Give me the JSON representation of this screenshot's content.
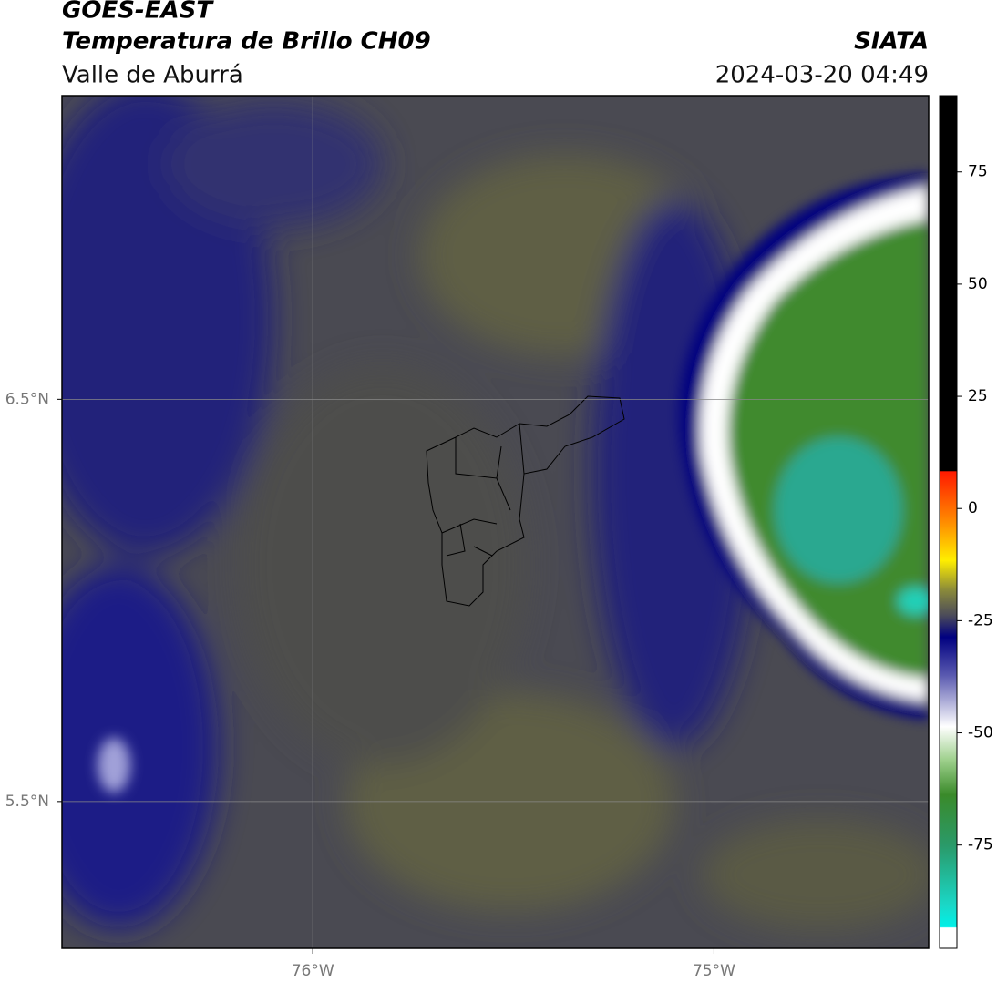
{
  "chart_data": {
    "type": "map",
    "title": "GOES-EAST",
    "subtitle": "Temperatura de Brillo CH09",
    "region": "Valle de Aburrá",
    "source": "SIATA",
    "timestamp": "2024-03-20 04:49",
    "xlim": [
      -76.625,
      -74.465
    ],
    "ylim": [
      5.135,
      7.255
    ],
    "xticks": [
      {
        "value": -76,
        "label": "76°W"
      },
      {
        "value": -75,
        "label": "75°W"
      }
    ],
    "yticks": [
      {
        "value": 5.5,
        "label": "5.5°N"
      },
      {
        "value": 6.5,
        "label": "6.5°N"
      }
    ],
    "grid": true,
    "colorbar": {
      "lim": [
        -98,
        92
      ],
      "ticks": [
        75,
        50,
        25,
        0,
        -25,
        -50,
        -75
      ]
    }
  }
}
